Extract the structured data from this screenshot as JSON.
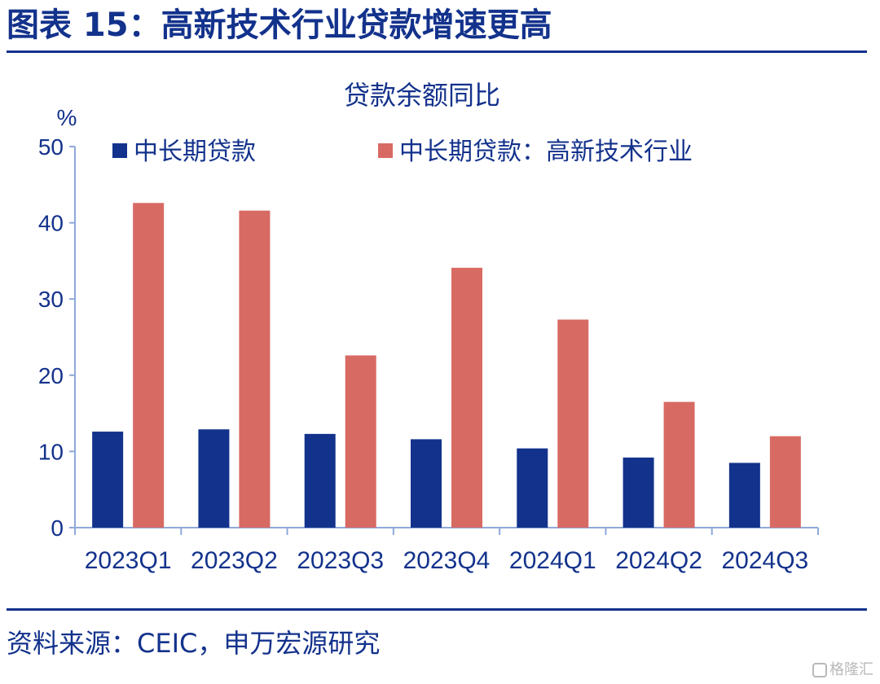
{
  "header": {
    "title": "图表 15：高新技术行业贷款增速更高"
  },
  "footer": {
    "source": "资料来源：CEIC，申万宏源研究",
    "watermark": "格隆汇"
  },
  "colors": {
    "brand": "#13328c",
    "series_1": "#13328c",
    "series_2": "#d86a64"
  },
  "chart_data": {
    "type": "bar",
    "title": "贷款余额同比",
    "ylabel": "%",
    "xlabel": "",
    "ylim": [
      0,
      50
    ],
    "yticks": [
      0,
      10,
      20,
      30,
      40,
      50
    ],
    "legend_position": "top",
    "grid": false,
    "categories": [
      "2023Q1",
      "2023Q2",
      "2023Q3",
      "2023Q4",
      "2024Q1",
      "2024Q2",
      "2024Q3"
    ],
    "series": [
      {
        "name": "中长期贷款",
        "color": "#13328c",
        "values": [
          12.6,
          12.9,
          12.3,
          11.6,
          10.4,
          9.2,
          8.5
        ]
      },
      {
        "name": "中长期贷款：高新技术行业",
        "color": "#d86a64",
        "values": [
          42.6,
          41.6,
          22.6,
          34.1,
          27.3,
          16.5,
          12.0
        ]
      }
    ]
  }
}
